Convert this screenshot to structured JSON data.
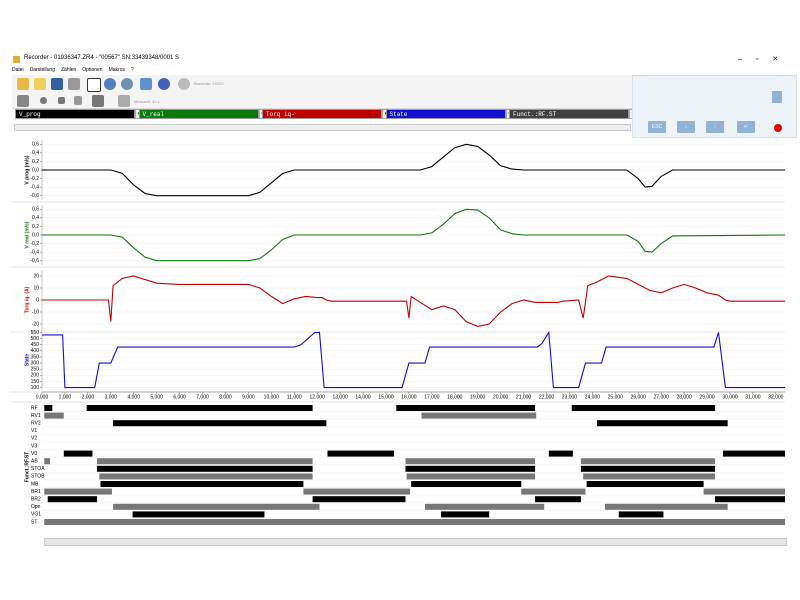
{
  "window": {
    "title": "Recorder - 01936347.ZR4 - \"00567\"   SN:33439348/0001  S",
    "menu": [
      "Datei",
      "Darstellung",
      "Zählen",
      "Optionen",
      "Makros",
      "?"
    ],
    "baudrate": "Baudrate: 19200",
    "messzeit": "Messzeit: 32 s",
    "channels": [
      {
        "name": "V_prog",
        "color": "#000000"
      },
      {
        "name": "V_real",
        "color": "#0a7a0a"
      },
      {
        "name": "Torq iq-",
        "color": "#c00000"
      },
      {
        "name": "State",
        "color": "#1010d0"
      },
      {
        "name": "Funct.:RF.ST",
        "color": "#404040"
      }
    ],
    "buttons": [
      "ESC"
    ]
  },
  "chart_data": [
    {
      "type": "line",
      "ylabel": "V prog (m/s)",
      "color": "#000000",
      "xlim": [
        0,
        32400
      ],
      "ylim": [
        -0.7,
        0.7
      ],
      "yticks": [
        {
          "value": 0.6,
          "label": "0,6"
        },
        {
          "value": 0.4,
          "label": "0,4"
        },
        {
          "value": 0.2,
          "label": "0,2"
        },
        {
          "value": 0,
          "label": "0,0"
        },
        {
          "value": -0.2,
          "label": "-0,2"
        },
        {
          "value": -0.4,
          "label": "-0,4"
        },
        {
          "value": -0.6,
          "label": "-0,6"
        }
      ],
      "x": [
        0,
        3000,
        3500,
        4000,
        4500,
        5000,
        9000,
        9500,
        10000,
        10500,
        11000,
        16500,
        17000,
        17500,
        18000,
        18500,
        19000,
        19500,
        20000,
        20500,
        21000,
        25500,
        26000,
        26300,
        26600,
        27000,
        27500,
        32400
      ],
      "values": [
        0,
        0,
        -0.08,
        -0.35,
        -0.55,
        -0.6,
        -0.6,
        -0.52,
        -0.3,
        -0.08,
        0,
        0,
        0.08,
        0.3,
        0.52,
        0.6,
        0.55,
        0.35,
        0.1,
        0.02,
        0,
        0,
        -0.2,
        -0.4,
        -0.38,
        -0.15,
        0,
        0
      ]
    },
    {
      "type": "line",
      "ylabel": "V real (m/s)",
      "color": "#0a7a0a",
      "xlim": [
        0,
        32400
      ],
      "ylim": [
        -0.7,
        0.7
      ],
      "yticks": [
        {
          "value": 0.6,
          "label": "0,6"
        },
        {
          "value": 0.4,
          "label": "0,4"
        },
        {
          "value": 0.2,
          "label": "0,2"
        },
        {
          "value": 0,
          "label": "0,0"
        },
        {
          "value": -0.2,
          "label": "-0,2"
        },
        {
          "value": -0.4,
          "label": "-0,4"
        },
        {
          "value": -0.6,
          "label": "-0,6"
        }
      ],
      "x": [
        0,
        3000,
        3500,
        4000,
        4500,
        5000,
        9000,
        9500,
        10000,
        10500,
        11000,
        16500,
        17000,
        17500,
        18000,
        18500,
        19000,
        19500,
        20000,
        20500,
        21000,
        25500,
        26000,
        26300,
        26600,
        27000,
        27500,
        32400
      ],
      "values": [
        0,
        0,
        -0.05,
        -0.3,
        -0.52,
        -0.6,
        -0.6,
        -0.55,
        -0.35,
        -0.1,
        0,
        0,
        0.05,
        0.25,
        0.5,
        0.6,
        0.58,
        0.4,
        0.12,
        0.03,
        0,
        0,
        -0.15,
        -0.38,
        -0.4,
        -0.2,
        -0.02,
        0
      ]
    },
    {
      "type": "line",
      "ylabel": "Torq iq- (A)",
      "color": "#c00000",
      "xlim": [
        0,
        32400
      ],
      "ylim": [
        -25,
        25
      ],
      "yticks": [
        20,
        10,
        0,
        -10,
        -20
      ],
      "x": [
        0,
        2900,
        3000,
        3100,
        3300,
        3500,
        4000,
        5000,
        6000,
        7000,
        8000,
        9000,
        9500,
        10000,
        10500,
        11000,
        11500,
        12000,
        12200,
        12400,
        12600,
        15900,
        16000,
        16100,
        16500,
        17000,
        17500,
        18000,
        18500,
        19000,
        19500,
        20000,
        20500,
        21000,
        21500,
        22500,
        22700,
        23400,
        23600,
        23800,
        24200,
        24700,
        25500,
        26000,
        26500,
        27000,
        27500,
        28000,
        28500,
        29000,
        29500,
        29800,
        30000,
        32400
      ],
      "values": [
        0,
        0,
        -18,
        12,
        15,
        18,
        20,
        14,
        13,
        13,
        13,
        13,
        10,
        3,
        -3,
        1,
        3,
        2,
        2,
        0,
        -1,
        -1,
        -15,
        3,
        -2,
        -8,
        -5,
        -8,
        -18,
        -22,
        -20,
        -10,
        -3,
        0,
        -2,
        -2,
        -1,
        0,
        -15,
        12,
        15,
        20,
        18,
        13,
        8,
        6,
        10,
        13,
        10,
        6,
        4,
        0,
        -1,
        -1
      ]
    },
    {
      "type": "line",
      "ylabel": "State",
      "color": "#1010d0",
      "xlim": [
        0,
        32400
      ],
      "ylim": [
        80,
        570
      ],
      "yticks": [
        550,
        500,
        450,
        400,
        350,
        300,
        250,
        200,
        150,
        100
      ],
      "x": [
        0,
        900,
        1000,
        2300,
        2500,
        3000,
        3300,
        11000,
        11300,
        11900,
        12100,
        12300,
        15700,
        16000,
        16700,
        16900,
        21600,
        21800,
        22100,
        22300,
        23400,
        23700,
        24400,
        24600,
        29300,
        29500,
        29800,
        32400
      ],
      "values": [
        530,
        530,
        100,
        100,
        300,
        300,
        430,
        430,
        450,
        550,
        550,
        100,
        100,
        300,
        300,
        430,
        430,
        460,
        550,
        100,
        100,
        300,
        300,
        430,
        430,
        550,
        100,
        100
      ],
      "xticks": [
        {
          "value": 0,
          "label": "0,000"
        },
        {
          "value": 1000,
          "label": "1,000"
        },
        {
          "value": 2000,
          "label": "2,000"
        },
        {
          "value": 3000,
          "label": "3,000"
        },
        {
          "value": 4000,
          "label": "4,000"
        },
        {
          "value": 5000,
          "label": "5,000"
        },
        {
          "value": 6000,
          "label": "6,000"
        },
        {
          "value": 7000,
          "label": "7,000"
        },
        {
          "value": 8000,
          "label": "8,000"
        },
        {
          "value": 9000,
          "label": "9,000"
        },
        {
          "value": 10000,
          "label": "10,000"
        },
        {
          "value": 11000,
          "label": "11,000"
        },
        {
          "value": 12000,
          "label": "12,000"
        },
        {
          "value": 13000,
          "label": "13,000"
        },
        {
          "value": 14000,
          "label": "14,000"
        },
        {
          "value": 15000,
          "label": "15,000"
        },
        {
          "value": 16000,
          "label": "16,000"
        },
        {
          "value": 17000,
          "label": "17,000"
        },
        {
          "value": 18000,
          "label": "18,000"
        },
        {
          "value": 19000,
          "label": "19,000"
        },
        {
          "value": 20000,
          "label": "20,000"
        },
        {
          "value": 21000,
          "label": "21,000"
        },
        {
          "value": 22000,
          "label": "22,000"
        },
        {
          "value": 23000,
          "label": "23,000"
        },
        {
          "value": 24000,
          "label": "24,000"
        },
        {
          "value": 25000,
          "label": "25,000"
        },
        {
          "value": 26000,
          "label": "26,000"
        },
        {
          "value": 27000,
          "label": "27,000"
        },
        {
          "value": 28000,
          "label": "28,000"
        },
        {
          "value": 29000,
          "label": "29,000"
        },
        {
          "value": 30000,
          "label": "30,000"
        },
        {
          "value": 31000,
          "label": "31,000"
        },
        {
          "value": 32000,
          "label": "32,000"
        }
      ]
    }
  ],
  "bus": {
    "label": "Funct.:RF.ST",
    "xlim": [
      0,
      32400
    ],
    "rows": [
      {
        "name": "RF",
        "segments": [
          {
            "start": 100,
            "end": 450,
            "color": "#000"
          },
          {
            "start": 1950,
            "end": 11800,
            "color": "#000"
          },
          {
            "start": 15450,
            "end": 21500,
            "color": "#000"
          },
          {
            "start": 23100,
            "end": 29350,
            "color": "#000"
          }
        ]
      },
      {
        "name": "RV1",
        "segments": [
          {
            "start": 100,
            "end": 950,
            "color": "#777"
          },
          {
            "start": 16550,
            "end": 21550,
            "color": "#777"
          }
        ]
      },
      {
        "name": "RV2",
        "segments": [
          {
            "start": 3100,
            "end": 12400,
            "color": "#000"
          },
          {
            "start": 24200,
            "end": 29900,
            "color": "#000"
          }
        ]
      },
      {
        "name": "V1",
        "segments": []
      },
      {
        "name": "V2",
        "segments": []
      },
      {
        "name": "V3",
        "segments": []
      },
      {
        "name": "V0",
        "segments": [
          {
            "start": 950,
            "end": 2200,
            "color": "#000"
          },
          {
            "start": 12450,
            "end": 15350,
            "color": "#000"
          },
          {
            "start": 22100,
            "end": 23150,
            "color": "#000"
          },
          {
            "start": 29700,
            "end": 32400,
            "color": "#000"
          }
        ]
      },
      {
        "name": "AB",
        "segments": [
          {
            "start": 100,
            "end": 350,
            "color": "#777"
          },
          {
            "start": 2400,
            "end": 11800,
            "color": "#777"
          },
          {
            "start": 15850,
            "end": 21500,
            "color": "#777"
          },
          {
            "start": 23500,
            "end": 29350,
            "color": "#777"
          }
        ]
      },
      {
        "name": "STOA",
        "segments": [
          {
            "start": 2400,
            "end": 11800,
            "color": "#000"
          },
          {
            "start": 15850,
            "end": 21500,
            "color": "#000"
          },
          {
            "start": 23500,
            "end": 29350,
            "color": "#000"
          }
        ]
      },
      {
        "name": "STOB",
        "segments": [
          {
            "start": 2500,
            "end": 11800,
            "color": "#777"
          },
          {
            "start": 15900,
            "end": 21500,
            "color": "#777"
          },
          {
            "start": 23600,
            "end": 29350,
            "color": "#777"
          }
        ]
      },
      {
        "name": "MB",
        "segments": [
          {
            "start": 2550,
            "end": 11400,
            "color": "#000"
          },
          {
            "start": 16100,
            "end": 20900,
            "color": "#000"
          },
          {
            "start": 23750,
            "end": 28850,
            "color": "#000"
          }
        ]
      },
      {
        "name": "BR1",
        "segments": [
          {
            "start": 100,
            "end": 3050,
            "color": "#777"
          },
          {
            "start": 11400,
            "end": 16050,
            "color": "#777"
          },
          {
            "start": 20900,
            "end": 23700,
            "color": "#777"
          },
          {
            "start": 28850,
            "end": 32400,
            "color": "#777"
          }
        ]
      },
      {
        "name": "BR2",
        "segments": [
          {
            "start": 250,
            "end": 2400,
            "color": "#000"
          },
          {
            "start": 11800,
            "end": 15850,
            "color": "#000"
          },
          {
            "start": 21500,
            "end": 23500,
            "color": "#000"
          },
          {
            "start": 29350,
            "end": 32400,
            "color": "#000"
          }
        ]
      },
      {
        "name": "Opn",
        "segments": [
          {
            "start": 3100,
            "end": 12100,
            "color": "#777"
          },
          {
            "start": 16700,
            "end": 21900,
            "color": "#777"
          },
          {
            "start": 24550,
            "end": 29900,
            "color": "#777"
          }
        ]
      },
      {
        "name": "VG1",
        "segments": [
          {
            "start": 3950,
            "end": 9700,
            "color": "#000"
          },
          {
            "start": 17400,
            "end": 19500,
            "color": "#000"
          },
          {
            "start": 25150,
            "end": 27100,
            "color": "#000"
          }
        ]
      },
      {
        "name": "ST",
        "segments": [
          {
            "start": 100,
            "end": 32400,
            "color": "#777"
          }
        ]
      }
    ]
  }
}
